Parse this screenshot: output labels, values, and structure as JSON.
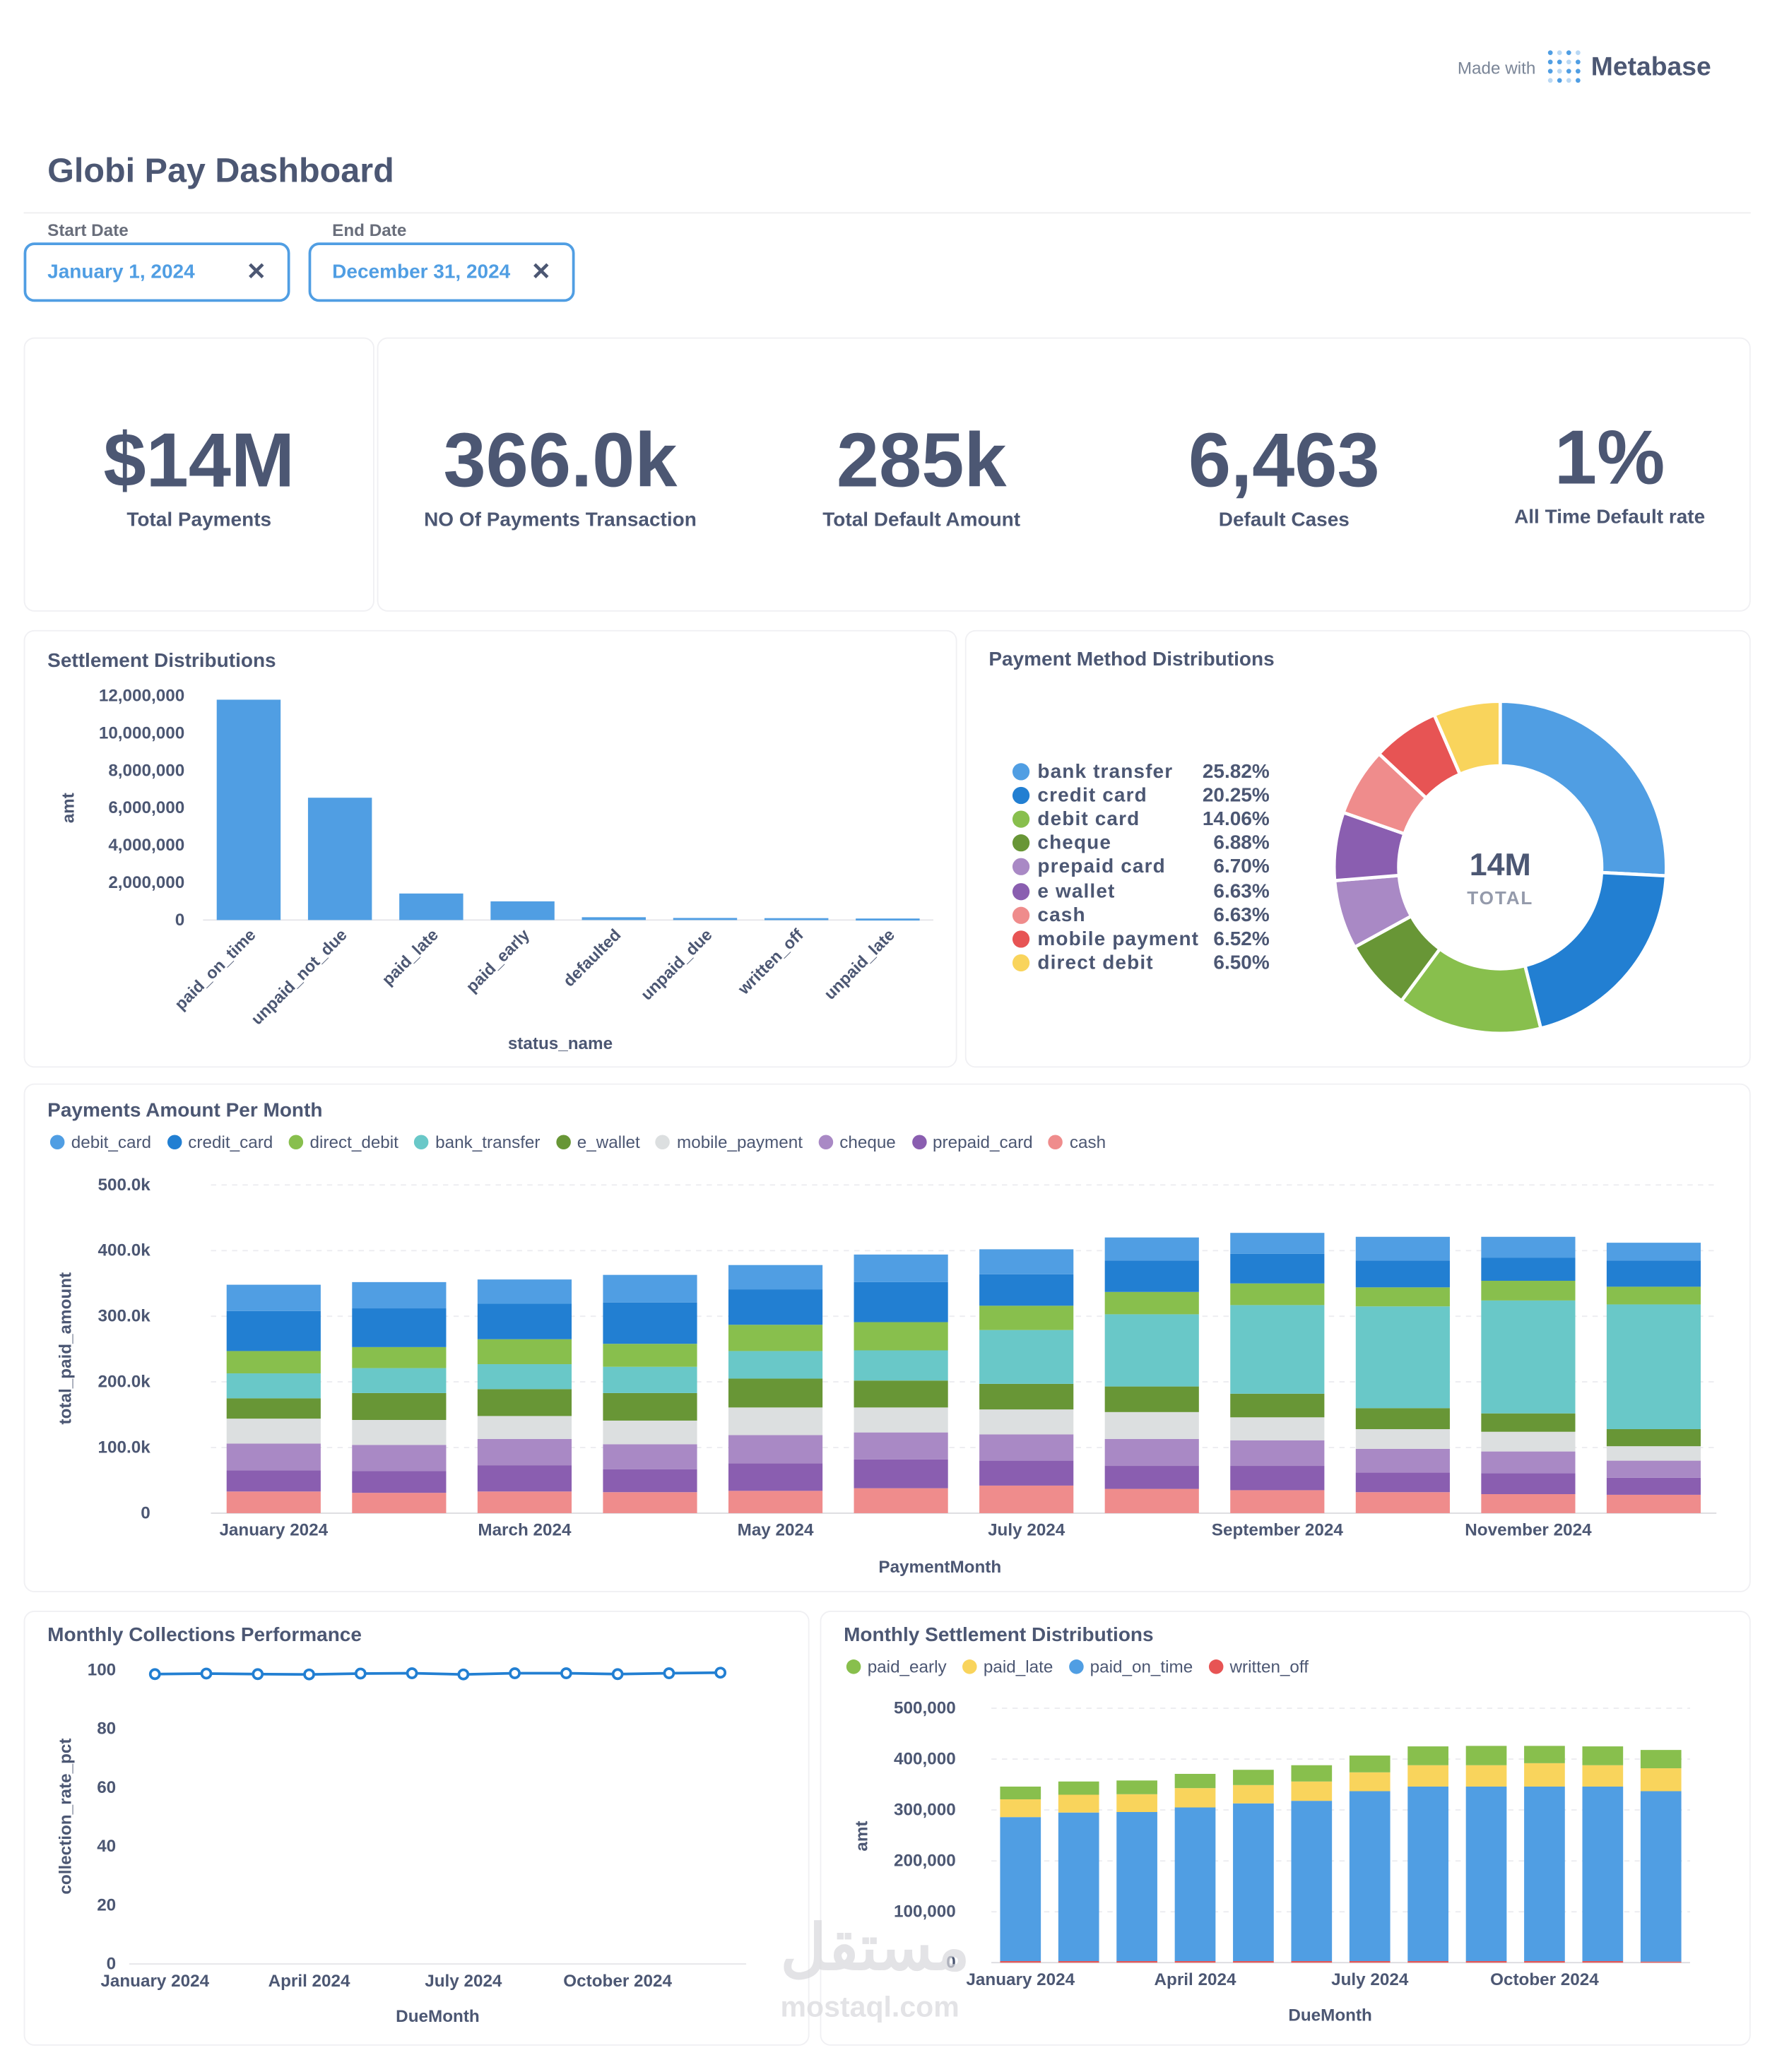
{
  "made_with": {
    "prefix": "Made with",
    "brand": "Metabase"
  },
  "dashboard": {
    "title": "Globi Pay Dashboard"
  },
  "filters": {
    "start": {
      "label": "Start Date",
      "value": "January 1, 2024"
    },
    "end": {
      "label": "End Date",
      "value": "December 31, 2024"
    }
  },
  "kpis": [
    {
      "value": "$14M",
      "label": "Total Payments"
    },
    {
      "value": "366.0k",
      "label": "NO Of Payments Transaction"
    },
    {
      "value": "285k",
      "label": "Total Default Amount"
    },
    {
      "value": "6,463",
      "label": "Default Cases"
    },
    {
      "value": "1%",
      "label": "All Time Default rate"
    }
  ],
  "colors": {
    "blue": "#509ee3",
    "dark_blue": "#227fd2",
    "green": "#88bf4d",
    "dark_green": "#689636",
    "teal": "#69c8c8",
    "light_gray": "#dcdfe0",
    "light_purple": "#a989c5",
    "purple": "#7172ad",
    "dark_purple": "#8a5eb0",
    "pink": "#ef8c8c",
    "red": "#e75454",
    "yellow": "#f9d45c"
  },
  "watermark": {
    "arabic": "مستقل",
    "latin": "mostaql.com"
  },
  "chart_data": [
    {
      "id": "settlement",
      "type": "bar",
      "title": "Settlement Distributions",
      "xlabel": "status_name",
      "ylabel": "amt",
      "ylim": [
        0,
        12000000
      ],
      "yticks": [
        "0",
        "2,000,000",
        "4,000,000",
        "6,000,000",
        "8,000,000",
        "10,000,000",
        "12,000,000"
      ],
      "categories": [
        "paid_on_time",
        "unpaid_not_due",
        "paid_late",
        "paid_early",
        "defaulted",
        "unpaid_due",
        "written_off",
        "unpaid_late"
      ],
      "values": [
        11800000,
        6550000,
        1420000,
        1000000,
        150000,
        110000,
        100000,
        80000
      ]
    },
    {
      "id": "payment_method",
      "type": "pie",
      "title": "Payment Method Distributions",
      "center_value": "14M",
      "center_label": "TOTAL",
      "slices": [
        {
          "name": "bank transfer",
          "pct": "25.82%",
          "value": 25.82,
          "color": "#509ee3"
        },
        {
          "name": "credit card",
          "pct": "20.25%",
          "value": 20.25,
          "color": "#227fd2"
        },
        {
          "name": "debit card",
          "pct": "14.06%",
          "value": 14.06,
          "color": "#88bf4d"
        },
        {
          "name": "cheque",
          "pct": "6.88%",
          "value": 6.88,
          "color": "#689636"
        },
        {
          "name": "prepaid card",
          "pct": "6.70%",
          "value": 6.7,
          "color": "#a989c5"
        },
        {
          "name": "e wallet",
          "pct": "6.63%",
          "value": 6.63,
          "color": "#8a5eb0"
        },
        {
          "name": "cash",
          "pct": "6.63%",
          "value": 6.63,
          "color": "#ef8c8c"
        },
        {
          "name": "mobile payment",
          "pct": "6.52%",
          "value": 6.52,
          "color": "#e75454"
        },
        {
          "name": "direct debit",
          "pct": "6.50%",
          "value": 6.5,
          "color": "#f9d45c"
        }
      ]
    },
    {
      "id": "per_month",
      "type": "bar",
      "stacked": true,
      "title": "Payments Amount Per Month",
      "xlabel": "PaymentMonth",
      "ylabel": "total_paid_amount",
      "ylim": [
        0,
        500000
      ],
      "yticks": [
        "0",
        "100.0k",
        "200.0k",
        "300.0k",
        "400.0k",
        "500.0k"
      ],
      "categories": [
        "January 2024",
        "February 2024",
        "March 2024",
        "April 2024",
        "May 2024",
        "June 2024",
        "July 2024",
        "August 2024",
        "September 2024",
        "October 2024",
        "November 2024",
        "December 2024"
      ],
      "xtick_labels": [
        "January 2024",
        "",
        "March 2024",
        "",
        "May 2024",
        "",
        "July 2024",
        "",
        "September 2024",
        "",
        "November 2024",
        ""
      ],
      "series": [
        {
          "name": "cash",
          "color": "#ef8c8c",
          "values": [
            33000,
            31000,
            33000,
            32000,
            34000,
            38000,
            42000,
            37000,
            35000,
            32000,
            29000,
            28000
          ]
        },
        {
          "name": "prepaid_card",
          "color": "#8a5eb0",
          "values": [
            32000,
            33000,
            40000,
            35000,
            42000,
            44000,
            38000,
            35000,
            37000,
            30000,
            32000,
            26000
          ]
        },
        {
          "name": "cheque",
          "color": "#a989c5",
          "values": [
            41000,
            40000,
            40000,
            38000,
            43000,
            41000,
            40000,
            41000,
            39000,
            36000,
            33000,
            26000
          ]
        },
        {
          "name": "mobile_payment",
          "color": "#dcdfe0",
          "values": [
            38000,
            38000,
            35000,
            36000,
            42000,
            38000,
            38000,
            41000,
            35000,
            30000,
            30000,
            22000
          ]
        },
        {
          "name": "e_wallet",
          "color": "#689636",
          "values": [
            31000,
            41000,
            41000,
            42000,
            44000,
            41000,
            39000,
            39000,
            36000,
            32000,
            28000,
            26000
          ]
        },
        {
          "name": "bank_transfer",
          "color": "#69c8c8",
          "values": [
            38000,
            38000,
            38000,
            40000,
            42000,
            46000,
            82000,
            110000,
            135000,
            155000,
            172000,
            190000
          ]
        },
        {
          "name": "direct_debit",
          "color": "#88bf4d",
          "values": [
            34000,
            32000,
            38000,
            35000,
            40000,
            43000,
            37000,
            34000,
            33000,
            29000,
            30000,
            27000
          ]
        },
        {
          "name": "credit_card",
          "color": "#227fd2",
          "values": [
            61000,
            59000,
            54000,
            63000,
            54000,
            61000,
            48000,
            48000,
            45000,
            41000,
            35000,
            40000
          ]
        },
        {
          "name": "debit_card",
          "color": "#509ee3",
          "values": [
            40000,
            40000,
            37000,
            42000,
            37000,
            42000,
            38000,
            35000,
            32000,
            36000,
            32000,
            27000
          ]
        }
      ],
      "legend_order": [
        "debit_card",
        "credit_card",
        "direct_debit",
        "bank_transfer",
        "e_wallet",
        "mobile_payment",
        "cheque",
        "prepaid_card",
        "cash"
      ]
    },
    {
      "id": "collections",
      "type": "line",
      "title": "Monthly Collections Performance",
      "xlabel": "DueMonth",
      "ylabel": "collection_rate_pct",
      "ylim": [
        0,
        100
      ],
      "yticks": [
        "0",
        "20",
        "40",
        "60",
        "80",
        "100"
      ],
      "x": [
        "January 2024",
        "February 2024",
        "March 2024",
        "April 2024",
        "May 2024",
        "June 2024",
        "July 2024",
        "August 2024",
        "September 2024",
        "October 2024",
        "November 2024",
        "December 2024"
      ],
      "xtick_labels": [
        "January 2024",
        "",
        "",
        "April 2024",
        "",
        "",
        "July 2024",
        "",
        "",
        "October 2024",
        "",
        ""
      ],
      "values": [
        98.6,
        98.8,
        98.6,
        98.5,
        98.8,
        98.9,
        98.5,
        98.9,
        98.9,
        98.6,
        98.9,
        99.1
      ]
    },
    {
      "id": "monthly_settlement",
      "type": "bar",
      "stacked": true,
      "title": "Monthly Settlement Distributions",
      "xlabel": "DueMonth",
      "ylabel": "amt",
      "ylim": [
        0,
        500000
      ],
      "yticks": [
        "0",
        "100,000",
        "200,000",
        "300,000",
        "400,000",
        "500,000"
      ],
      "categories": [
        "January 2024",
        "February 2024",
        "March 2024",
        "April 2024",
        "May 2024",
        "June 2024",
        "July 2024",
        "August 2024",
        "September 2024",
        "October 2024",
        "November 2024",
        "December 2024"
      ],
      "xtick_labels": [
        "January 2024",
        "",
        "",
        "April 2024",
        "",
        "",
        "July 2024",
        "",
        "",
        "October 2024",
        "",
        ""
      ],
      "series": [
        {
          "name": "written_off",
          "color": "#e75454",
          "values": [
            3000,
            3000,
            3000,
            3000,
            3000,
            3000,
            3000,
            3000,
            3000,
            3000,
            3000,
            2000
          ]
        },
        {
          "name": "paid_on_time",
          "color": "#509ee3",
          "values": [
            283000,
            292000,
            293000,
            302000,
            310000,
            315000,
            334000,
            343000,
            343000,
            343000,
            343000,
            335000
          ]
        },
        {
          "name": "paid_late",
          "color": "#f9d45c",
          "values": [
            35000,
            35000,
            35000,
            38000,
            36000,
            38000,
            37000,
            42000,
            42000,
            46000,
            42000,
            45000
          ]
        },
        {
          "name": "paid_early",
          "color": "#88bf4d",
          "values": [
            25000,
            26000,
            27000,
            28000,
            30000,
            32000,
            33000,
            37000,
            38000,
            34000,
            37000,
            36000
          ]
        }
      ],
      "legend_order": [
        "paid_early",
        "paid_late",
        "paid_on_time",
        "written_off"
      ]
    }
  ]
}
